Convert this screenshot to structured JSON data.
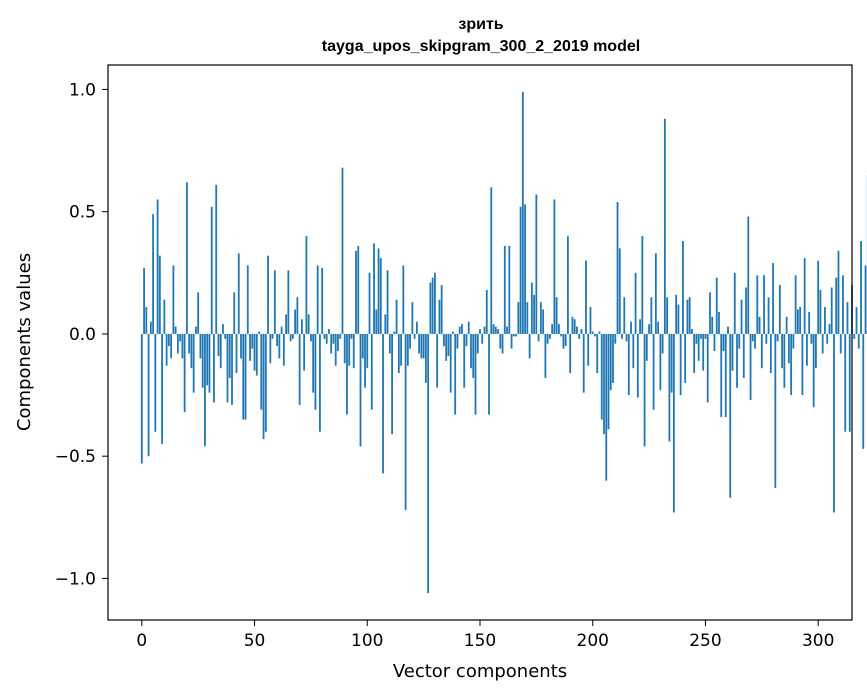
{
  "chart_data": {
    "type": "bar",
    "title": "зрить",
    "subtitle": "tayga_upos_skipgram_300_2_2019 model",
    "xlabel": "Vector components",
    "ylabel": "Components values",
    "xlim": [
      -15,
      315
    ],
    "ylim": [
      -1.17,
      1.1
    ],
    "xticks": [
      0,
      50,
      100,
      150,
      200,
      250,
      300
    ],
    "xtick_labels": [
      "0",
      "50",
      "100",
      "150",
      "200",
      "250",
      "300"
    ],
    "yticks": [
      -1.0,
      -0.5,
      0.0,
      0.5,
      1.0
    ],
    "ytick_labels": [
      "−1.0",
      "−0.5",
      "0.0",
      "0.5",
      "1.0"
    ],
    "bar_color": "#1f77b4",
    "grid": false,
    "series": [
      {
        "name": "зрить",
        "values": [
          -0.53,
          0.27,
          0.11,
          -0.5,
          0.05,
          0.49,
          -0.4,
          0.55,
          0.32,
          -0.45,
          0.14,
          -0.13,
          -0.05,
          -0.1,
          0.28,
          0.03,
          -0.08,
          -0.03,
          -0.1,
          -0.32,
          0.62,
          -0.08,
          -0.14,
          -0.24,
          0.03,
          0.17,
          -0.1,
          -0.22,
          -0.46,
          -0.21,
          -0.24,
          0.52,
          -0.28,
          0.61,
          -0.09,
          -0.14,
          0.04,
          -0.02,
          -0.28,
          -0.18,
          -0.29,
          0.17,
          -0.16,
          0.33,
          -0.1,
          -0.35,
          -0.35,
          0.28,
          -0.11,
          -0.06,
          -0.15,
          -0.17,
          0.01,
          -0.31,
          -0.43,
          -0.4,
          0.32,
          -0.12,
          -0.02,
          0.26,
          -0.05,
          -0.1,
          0.03,
          -0.13,
          0.08,
          0.26,
          -0.03,
          -0.02,
          0.1,
          0.15,
          -0.29,
          0.06,
          -0.15,
          0.4,
          0.08,
          -0.03,
          -0.24,
          -0.31,
          0.28,
          -0.4,
          0.27,
          -0.02,
          -0.04,
          0.02,
          -0.08,
          -0.04,
          -0.13,
          -0.07,
          -0.02,
          0.68,
          -0.12,
          -0.33,
          -0.13,
          -0.02,
          -0.14,
          0.34,
          0.36,
          -0.46,
          -0.1,
          -0.22,
          -0.14,
          0.25,
          -0.31,
          0.37,
          0.1,
          0.35,
          0.31,
          -0.57,
          0.08,
          0.26,
          -0.08,
          -0.41,
          0.01,
          0.14,
          -0.16,
          -0.13,
          0.28,
          -0.72,
          -0.13,
          -0.06,
          0.13,
          -0.02,
          0.05,
          -0.08,
          -0.1,
          -0.1,
          -0.2,
          -1.06,
          0.21,
          0.23,
          0.25,
          -0.22,
          0.14,
          0.2,
          -0.05,
          -0.11,
          -0.09,
          -0.24,
          0.01,
          -0.33,
          -0.06,
          0.03,
          0.04,
          -0.22,
          -0.05,
          0.05,
          -0.14,
          -0.18,
          -0.33,
          -0.08,
          0.02,
          -0.04,
          0.03,
          0.18,
          -0.33,
          0.6,
          0.04,
          0.03,
          0.02,
          -0.06,
          -0.08,
          0.36,
          0.03,
          0.36,
          -0.06,
          -0.01,
          -0.01,
          0.13,
          0.52,
          0.99,
          0.53,
          0.13,
          -0.1,
          0.21,
          0.16,
          0.57,
          -0.03,
          0.13,
          0.1,
          -0.18,
          -0.04,
          -0.02,
          0.04,
          0.55,
          0.15,
          0.04,
          -0.01,
          -0.06,
          -0.05,
          0.4,
          -0.16,
          0.07,
          0.06,
          0.03,
          -0.02,
          0.02,
          -0.24,
          0.3,
          -0.13,
          0.11,
          0.01,
          -0.01,
          -0.16,
          0.01,
          -0.35,
          -0.41,
          -0.6,
          -0.39,
          -0.23,
          -0.2,
          -0.04,
          0.54,
          0.35,
          -0.02,
          0.15,
          -0.03,
          -0.25,
          0.05,
          -0.14,
          0.25,
          -0.26,
          0.06,
          0.4,
          -0.46,
          -0.11,
          0.04,
          0.15,
          -0.31,
          0.33,
          0.05,
          -0.23,
          -0.08,
          0.88,
          0.15,
          -0.44,
          -0.24,
          -0.73,
          0.16,
          0.12,
          -0.25,
          0.38,
          -0.2,
          0.14,
          0.15,
          0.02,
          -0.16,
          -0.04,
          -0.11,
          -0.02,
          -0.15,
          -0.02,
          -0.28,
          0.17,
          0.07,
          -0.07,
          0.23,
          0.09,
          -0.34,
          -0.07,
          -0.34,
          0.03,
          -0.67,
          -0.15,
          0.25,
          -0.22,
          -0.06,
          0.14,
          -0.18,
          0.19,
          0.48,
          -0.27,
          -0.03,
          -0.06,
          0.24,
          0.07,
          -0.14,
          0.24,
          -0.04,
          0.15,
          -0.16,
          0.29,
          -0.63,
          -0.03,
          0.2,
          -0.14,
          -0.22,
          0.07,
          -0.12,
          -0.25,
          -0.06,
          0.24,
          0.1,
          0.11,
          -0.25,
          0.31,
          -0.13,
          0.09,
          -0.04,
          -0.3,
          -0.14,
          0.3,
          0.18,
          -0.08,
          0.11,
          -0.04,
          0.04,
          0.19,
          -0.73,
          0.23,
          0.34,
          -0.08,
          0.24,
          -0.4,
          0.13,
          -0.4,
          0.2,
          -0.02,
          0.11,
          -0.06,
          0.38,
          -0.47,
          0.28,
          0.65,
          -0.32
        ]
      }
    ]
  }
}
